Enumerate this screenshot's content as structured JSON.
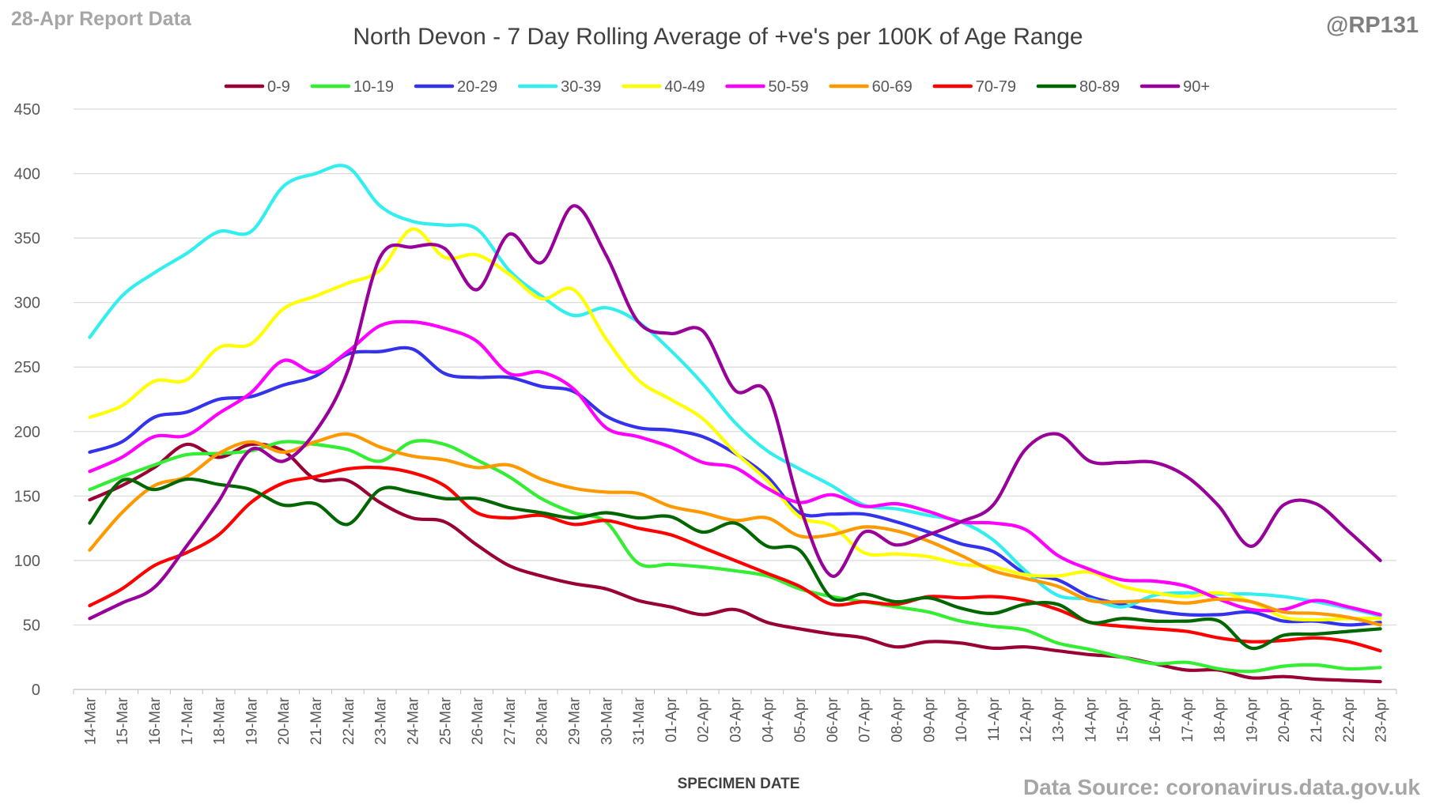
{
  "header": {
    "report_label": "28-Apr Report Data",
    "handle": "@RP131",
    "source": "Data Source: coronavirus.data.gov.uk"
  },
  "chart_data": {
    "type": "line",
    "title": "North Devon - 7 Day Rolling Average of +ve's per 100K of Age Range",
    "xlabel": "SPECIMEN DATE",
    "ylabel": "",
    "ylim": [
      0,
      450
    ],
    "yticks": [
      0,
      50,
      100,
      150,
      200,
      250,
      300,
      350,
      400,
      450
    ],
    "grid": "horizontal",
    "legend_position": "top",
    "categories": [
      "14-Mar",
      "15-Mar",
      "16-Mar",
      "17-Mar",
      "18-Mar",
      "19-Mar",
      "20-Mar",
      "21-Mar",
      "22-Mar",
      "23-Mar",
      "24-Mar",
      "25-Mar",
      "26-Mar",
      "27-Mar",
      "28-Mar",
      "29-Mar",
      "30-Mar",
      "31-Mar",
      "01-Apr",
      "02-Apr",
      "03-Apr",
      "04-Apr",
      "05-Apr",
      "06-Apr",
      "07-Apr",
      "08-Apr",
      "09-Apr",
      "10-Apr",
      "11-Apr",
      "12-Apr",
      "13-Apr",
      "14-Apr",
      "15-Apr",
      "16-Apr",
      "17-Apr",
      "18-Apr",
      "19-Apr",
      "20-Apr",
      "21-Apr",
      "22-Apr",
      "23-Apr"
    ],
    "series": [
      {
        "name": "0-9",
        "color": "#990033",
        "values": [
          147,
          158,
          172,
          190,
          180,
          190,
          185,
          163,
          162,
          145,
          133,
          130,
          112,
          96,
          88,
          82,
          78,
          69,
          64,
          58,
          62,
          52,
          47,
          43,
          40,
          33,
          37,
          36,
          32,
          33,
          30,
          27,
          25,
          20,
          15,
          15,
          9,
          10,
          8,
          7,
          6
        ]
      },
      {
        "name": "10-19",
        "color": "#33ee33",
        "values": [
          155,
          165,
          174,
          182,
          183,
          185,
          192,
          190,
          186,
          177,
          192,
          190,
          178,
          165,
          148,
          137,
          130,
          98,
          97,
          95,
          92,
          88,
          78,
          72,
          68,
          64,
          60,
          53,
          49,
          46,
          36,
          31,
          25,
          20,
          21,
          16,
          14,
          18,
          19,
          16,
          17
        ]
      },
      {
        "name": "20-29",
        "color": "#3333ee",
        "values": [
          184,
          192,
          211,
          215,
          225,
          227,
          236,
          243,
          260,
          262,
          264,
          245,
          242,
          242,
          235,
          231,
          212,
          203,
          201,
          196,
          183,
          165,
          137,
          136,
          136,
          130,
          122,
          113,
          107,
          90,
          85,
          72,
          66,
          61,
          58,
          58,
          60,
          53,
          53,
          50,
          52
        ]
      },
      {
        "name": "30-39",
        "color": "#33eeee",
        "values": [
          273,
          305,
          323,
          338,
          355,
          355,
          390,
          400,
          405,
          375,
          363,
          360,
          357,
          325,
          305,
          290,
          296,
          285,
          263,
          237,
          207,
          185,
          171,
          158,
          143,
          140,
          135,
          130,
          116,
          92,
          73,
          70,
          64,
          73,
          75,
          74,
          74,
          72,
          68,
          63,
          57
        ]
      },
      {
        "name": "40-49",
        "color": "#ffff00",
        "values": [
          211,
          220,
          239,
          240,
          265,
          268,
          295,
          305,
          315,
          325,
          357,
          335,
          337,
          322,
          303,
          310,
          272,
          240,
          225,
          210,
          184,
          162,
          134,
          127,
          106,
          105,
          103,
          97,
          95,
          89,
          88,
          91,
          80,
          75,
          72,
          75,
          68,
          56,
          54,
          55,
          55
        ]
      },
      {
        "name": "50-59",
        "color": "#ff00ff",
        "values": [
          169,
          180,
          196,
          197,
          214,
          230,
          255,
          246,
          262,
          282,
          285,
          280,
          270,
          245,
          246,
          233,
          203,
          196,
          188,
          176,
          172,
          156,
          145,
          151,
          142,
          144,
          138,
          130,
          129,
          124,
          104,
          93,
          85,
          84,
          80,
          70,
          62,
          62,
          69,
          64,
          58
        ]
      },
      {
        "name": "60-69",
        "color": "#ff9900",
        "values": [
          108,
          137,
          158,
          165,
          183,
          192,
          184,
          192,
          198,
          188,
          181,
          178,
          172,
          174,
          163,
          156,
          153,
          152,
          142,
          137,
          131,
          133,
          119,
          120,
          126,
          123,
          115,
          104,
          92,
          86,
          80,
          69,
          68,
          69,
          67,
          70,
          68,
          60,
          59,
          56,
          50
        ]
      },
      {
        "name": "70-79",
        "color": "#ff0000",
        "values": [
          65,
          78,
          96,
          106,
          120,
          145,
          160,
          165,
          171,
          172,
          168,
          158,
          137,
          133,
          135,
          128,
          131,
          125,
          120,
          110,
          100,
          90,
          80,
          66,
          68,
          66,
          72,
          71,
          72,
          69,
          62,
          52,
          49,
          47,
          45,
          40,
          37,
          38,
          40,
          37,
          30
        ]
      },
      {
        "name": "80-89",
        "color": "#006600",
        "values": [
          129,
          162,
          155,
          163,
          159,
          155,
          143,
          144,
          128,
          155,
          153,
          148,
          148,
          141,
          137,
          133,
          137,
          133,
          134,
          122,
          129,
          111,
          108,
          71,
          74,
          68,
          71,
          63,
          59,
          66,
          66,
          52,
          55,
          53,
          53,
          53,
          32,
          42,
          43,
          45,
          47
        ]
      },
      {
        "name": "90+",
        "color": "#990099",
        "values": [
          55,
          67,
          79,
          111,
          146,
          186,
          177,
          200,
          247,
          335,
          343,
          342,
          310,
          353,
          331,
          375,
          337,
          285,
          276,
          278,
          232,
          230,
          143,
          88,
          122,
          112,
          120,
          130,
          143,
          186,
          198,
          177,
          176,
          176,
          165,
          142,
          111,
          143,
          144,
          123,
          100
        ]
      }
    ]
  }
}
